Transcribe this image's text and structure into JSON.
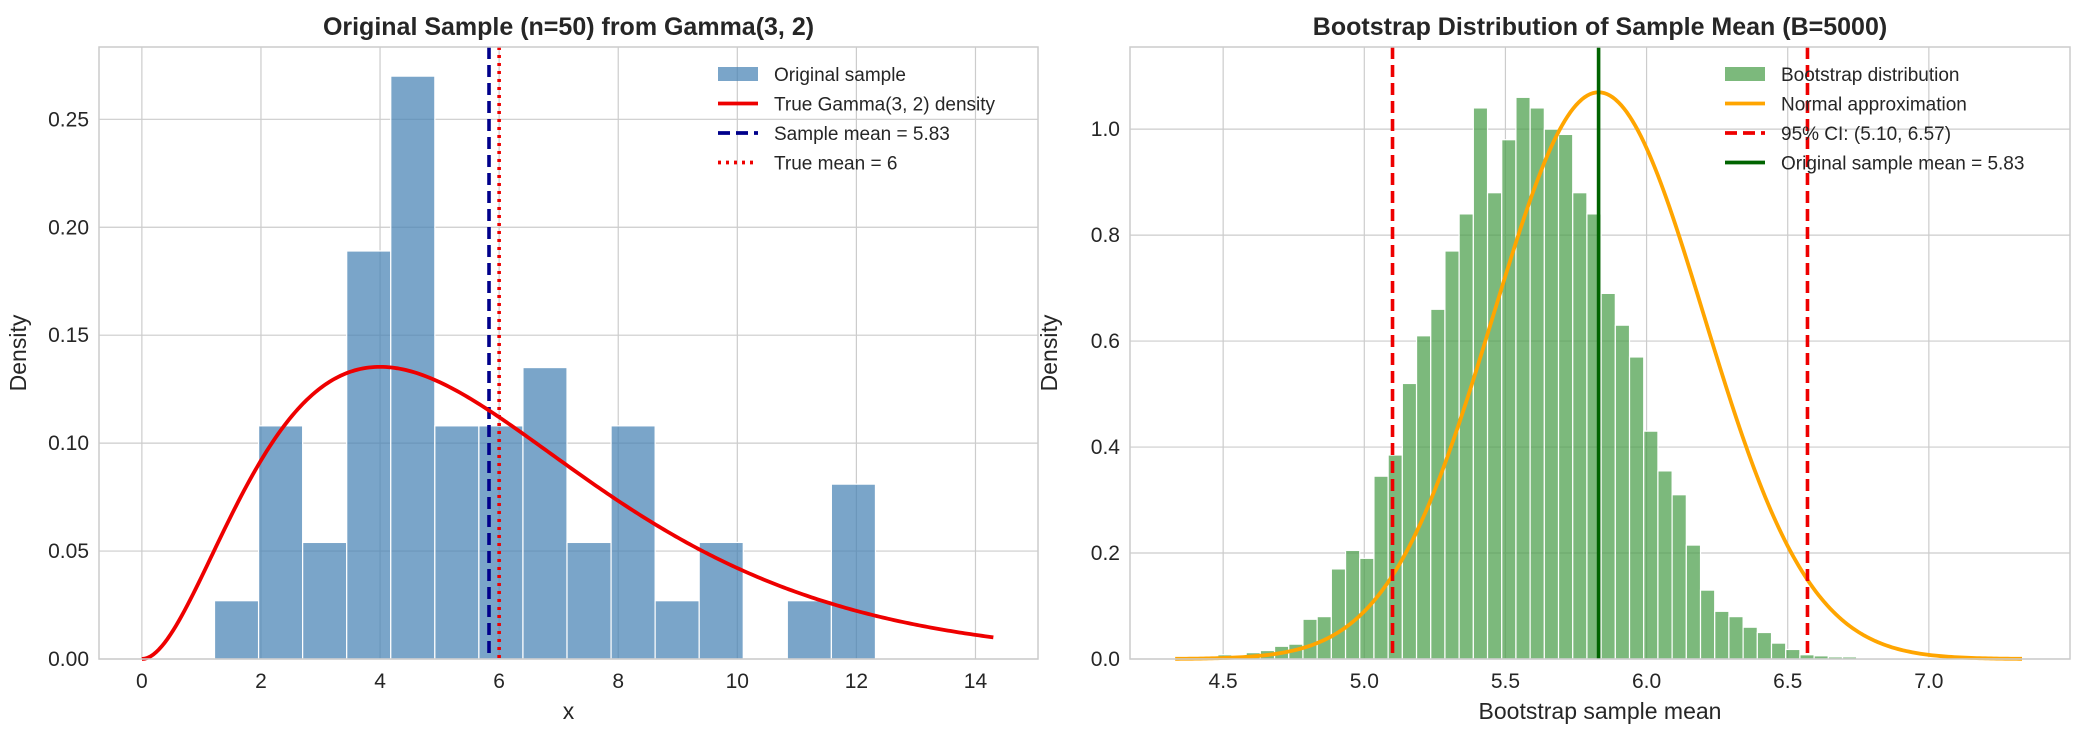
{
  "chart_data": [
    {
      "type": "bar",
      "title": "Original Sample (n=50) from Gamma(3, 2)",
      "xlabel": "x",
      "ylabel": "Density",
      "xlim": [
        -0.72,
        15.05
      ],
      "ylim": [
        0,
        0.2835
      ],
      "xticks": [
        0,
        2,
        4,
        6,
        8,
        10,
        12,
        14
      ],
      "xtick_labels": [
        "0",
        "2",
        "4",
        "6",
        "8",
        "10",
        "12",
        "14"
      ],
      "yticks": [
        0,
        0.05,
        0.1,
        0.15,
        0.2,
        0.25
      ],
      "ytick_labels": [
        "0.00",
        "0.05",
        "0.10",
        "0.15",
        "0.20",
        "0.25"
      ],
      "grid": true,
      "legend_position": "upper right",
      "histogram": {
        "name": "Original sample",
        "color": "#4682b4",
        "bin_start": 1.22,
        "bin_width": 0.74,
        "densities": [
          0.027,
          0.108,
          0.054,
          0.189,
          0.27,
          0.108,
          0.108,
          0.135,
          0.054,
          0.108,
          0.027,
          0.054,
          0.0,
          0.027,
          0.081
        ]
      },
      "curve": {
        "name": "True Gamma(3, 2) density",
        "color": "#ee0000",
        "shape": 3,
        "scale": 2,
        "x_range": [
          0,
          14.3
        ]
      },
      "vlines": [
        {
          "name": "Sample mean = 5.83",
          "x": 5.83,
          "color": "#00008b",
          "style": "dashed"
        },
        {
          "name": "True mean = 6",
          "x": 6.0,
          "color": "#ee0000",
          "style": "dotted"
        }
      ],
      "legend": [
        {
          "label": "Original sample",
          "kind": "patch",
          "color": "#4682b4"
        },
        {
          "label": "True Gamma(3, 2) density",
          "kind": "line",
          "color": "#ee0000",
          "style": "solid"
        },
        {
          "label": "Sample mean = 5.83",
          "kind": "line",
          "color": "#00008b",
          "style": "dashed"
        },
        {
          "label": "True mean = 6",
          "kind": "line",
          "color": "#ee0000",
          "style": "dotted"
        }
      ]
    },
    {
      "type": "bar",
      "title": "Bootstrap Distribution of Sample Mean (B=5000)",
      "xlabel": "Bootstrap sample mean",
      "ylabel": "Density",
      "xlim": [
        4.17,
        7.5
      ],
      "ylim": [
        0,
        1.155
      ],
      "xticks": [
        4.5,
        5.0,
        5.5,
        6.0,
        6.5,
        7.0
      ],
      "xtick_labels": [
        "4.5",
        "5.0",
        "5.5",
        "6.0",
        "6.5",
        "7.0"
      ],
      "yticks": [
        0,
        0.2,
        0.4,
        0.6,
        0.8,
        1.0
      ],
      "ytick_labels": [
        "0.0",
        "0.2",
        "0.4",
        "0.6",
        "0.8",
        "1.0"
      ],
      "grid": true,
      "legend_position": "upper right",
      "histogram": {
        "name": "Bootstrap distribution",
        "color": "#4a9e4a",
        "bin_start": 4.33,
        "bin_width": 0.0503,
        "densities": [
          0.002,
          0.002,
          0.004,
          0.008,
          0.006,
          0.012,
          0.016,
          0.024,
          0.028,
          0.075,
          0.08,
          0.17,
          0.205,
          0.19,
          0.345,
          0.385,
          0.52,
          0.61,
          0.66,
          0.77,
          0.84,
          1.04,
          0.88,
          0.98,
          1.06,
          1.04,
          1.0,
          0.99,
          0.88,
          0.84,
          0.69,
          0.63,
          0.57,
          0.43,
          0.355,
          0.31,
          0.215,
          0.13,
          0.09,
          0.08,
          0.06,
          0.05,
          0.03,
          0.018,
          0.008,
          0.006,
          0.004,
          0.004,
          0.002,
          0.002,
          0.002,
          0.002,
          0.002,
          0.002
        ]
      },
      "curve": {
        "name": "Normal approximation",
        "color": "#ffa500",
        "mean": 5.83,
        "sd": 0.373,
        "x_range": [
          4.33,
          7.33
        ]
      },
      "vlines": [
        {
          "name": "95% CI: (5.10, 6.57)",
          "x": 5.1,
          "color": "#ee0000",
          "style": "dashed"
        },
        {
          "name": "95% CI: (5.10, 6.57)",
          "x": 6.57,
          "color": "#ee0000",
          "style": "dashed"
        },
        {
          "name": "Original sample mean = 5.83",
          "x": 5.83,
          "color": "#006400",
          "style": "solid"
        }
      ],
      "legend": [
        {
          "label": "Bootstrap distribution",
          "kind": "patch",
          "color": "#4a9e4a"
        },
        {
          "label": "Normal approximation",
          "kind": "line",
          "color": "#ffa500",
          "style": "solid"
        },
        {
          "label": "95% CI: (5.10, 6.57)",
          "kind": "line",
          "color": "#ee0000",
          "style": "dashed"
        },
        {
          "label": "Original sample mean = 5.83",
          "kind": "line",
          "color": "#006400",
          "style": "solid"
        }
      ]
    }
  ]
}
